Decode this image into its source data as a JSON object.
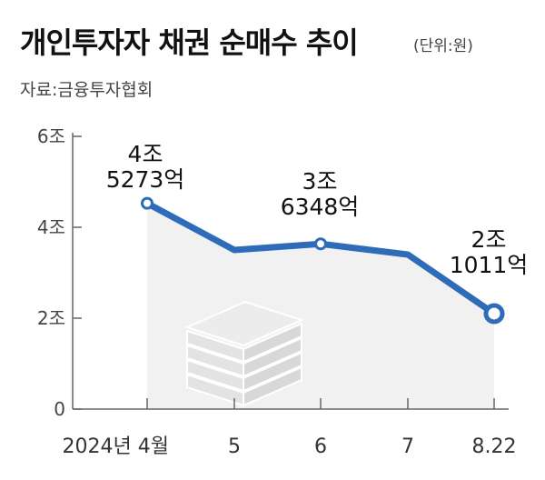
{
  "title": "개인투자자 채권 순매수 추이",
  "unit_note": "(단위:원)",
  "source": "자료:금융투자협회",
  "colors": {
    "line": "#2e6bb8",
    "axis": "#666666",
    "fill": "#f1f1f1",
    "icon": "#e3e3e3"
  },
  "icon": "bond-stack-icon",
  "chart_data": {
    "type": "line",
    "title": "개인투자자 채권 순매수 추이",
    "x": [
      "2024년 4월",
      "5",
      "6",
      "7",
      "8.22"
    ],
    "x_labels": [
      "2024년 4월",
      "5",
      "6",
      "7",
      "8.22"
    ],
    "y_ticks": [
      {
        "value": 0,
        "label": "0"
      },
      {
        "value": 2,
        "label": "2조"
      },
      {
        "value": 4,
        "label": "4조"
      },
      {
        "value": 6,
        "label": "6조"
      }
    ],
    "ylim": [
      0,
      6
    ],
    "series": [
      {
        "values": [
          4.5273,
          3.5,
          3.6348,
          3.4,
          2.1011
        ]
      }
    ],
    "data_labels": [
      {
        "index": 0,
        "lines": [
          "4조",
          "5273억"
        ]
      },
      {
        "index": 2,
        "lines": [
          "3조",
          "6348억"
        ]
      },
      {
        "index": 4,
        "lines": [
          "2조",
          "1011억"
        ]
      }
    ]
  }
}
